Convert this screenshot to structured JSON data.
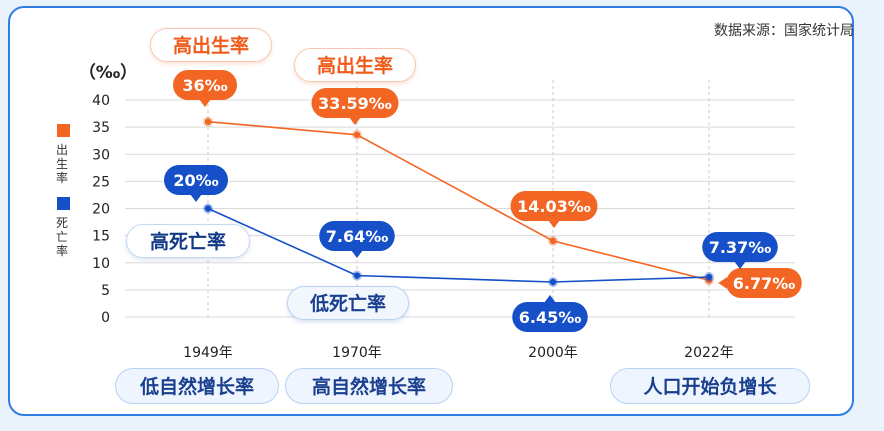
{
  "source": "数据来源：国家统计局",
  "legend": [
    {
      "name": "出生率",
      "color": "#f26522"
    },
    {
      "name": "死亡率",
      "color": "#1550c8"
    }
  ],
  "annotations": {
    "birth_high_1": "高出生率",
    "birth_high_2": "高出生率",
    "death_high": "高死亡率",
    "death_low": "低死亡率",
    "natural_low": "低自然增长率",
    "natural_high": "高自然增长率",
    "negative_growth": "人口开始负增长"
  },
  "chart_data": {
    "type": "line",
    "x": [
      "1949年",
      "1970年",
      "2000年",
      "2022年"
    ],
    "x_values": [
      1949,
      1970,
      2000,
      2022
    ],
    "y_unit": "（‰）",
    "ylim": [
      0,
      40
    ],
    "yticks": [
      0,
      5,
      10,
      15,
      20,
      25,
      30,
      35,
      40
    ],
    "grid": true,
    "legend_placement": "left",
    "series": [
      {
        "name": "出生率",
        "color": "#f26522",
        "values": [
          36,
          33.59,
          14.03,
          6.77
        ],
        "labels": [
          "36‰",
          "33.59‰",
          "14.03‰",
          "6.77‰"
        ]
      },
      {
        "name": "死亡率",
        "color": "#1550c8",
        "values": [
          20,
          7.64,
          6.45,
          7.37
        ],
        "labels": [
          "20‰",
          "7.64‰",
          "6.45‰",
          "7.37‰"
        ]
      }
    ]
  }
}
